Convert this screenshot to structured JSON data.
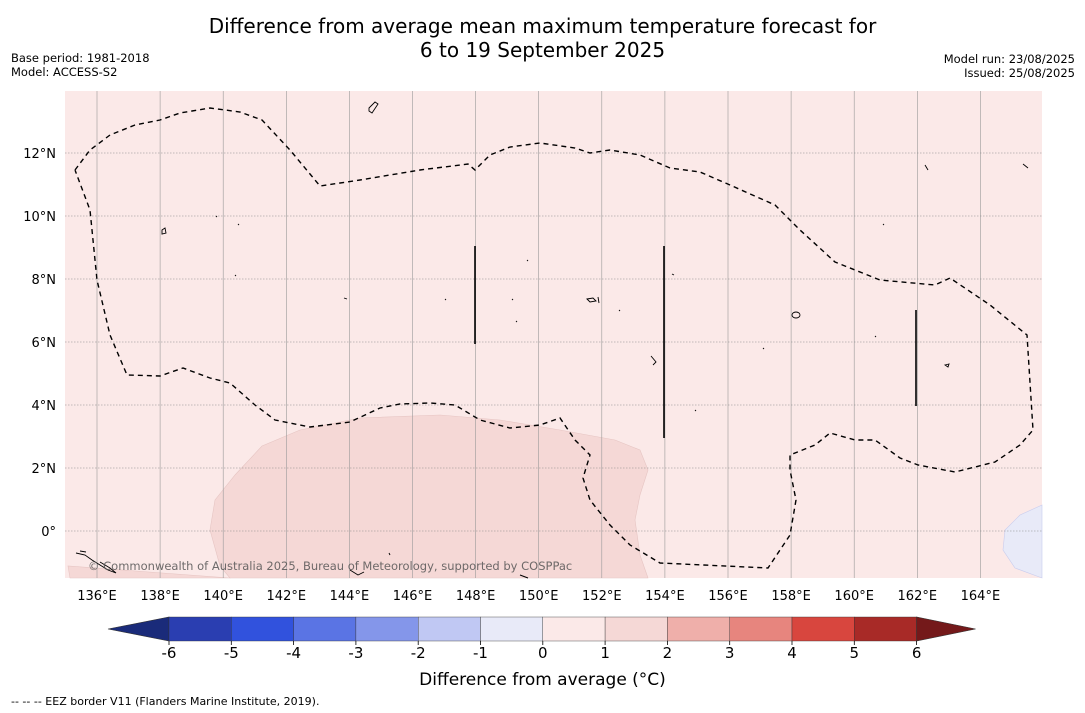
{
  "title_line1": "Difference from average mean maximum temperature forecast for",
  "title_line2": "6 to 19 September 2025",
  "meta": {
    "base_period": "Base period: 1981-2018",
    "model": "Model: ACCESS-S2",
    "model_run": "Model run: 23/08/2025",
    "issued": "Issued: 25/08/2025"
  },
  "map": {
    "lon_ticks": [
      "136°E",
      "138°E",
      "140°E",
      "142°E",
      "144°E",
      "146°E",
      "148°E",
      "150°E",
      "152°E",
      "154°E",
      "156°E",
      "158°E",
      "160°E",
      "162°E",
      "164°E"
    ],
    "lat_ticks": [
      "12°N",
      "10°N",
      "8°N",
      "6°N",
      "4°N",
      "2°N",
      "0°"
    ],
    "copyright": "© Commonwealth of Australia 2025, Bureau of Meteorology, supported by COSPPac",
    "colors": {
      "background_anomaly": "#fbe9e8",
      "warm_region": "#f5d8d6",
      "cool_region": "#e8eaf8",
      "eez_line": "#000000"
    }
  },
  "legend": {
    "title": "Difference from average (°C)",
    "tick_labels": [
      "-6",
      "-5",
      "-4",
      "-3",
      "-2",
      "-1",
      "0",
      "1",
      "2",
      "3",
      "4",
      "5",
      "6"
    ],
    "colors": [
      "#1a2b7a",
      "#2a3eb1",
      "#3152dd",
      "#5a74e4",
      "#8496ea",
      "#c0c8f3",
      "#e8eaf8",
      "#fbe9e8",
      "#f5d8d6",
      "#efafaa",
      "#e7857e",
      "#d8463e",
      "#a82a27",
      "#74191a"
    ]
  },
  "footer": "--  --  -- EEZ border V11 (Flanders Marine Institute, 2019)."
}
